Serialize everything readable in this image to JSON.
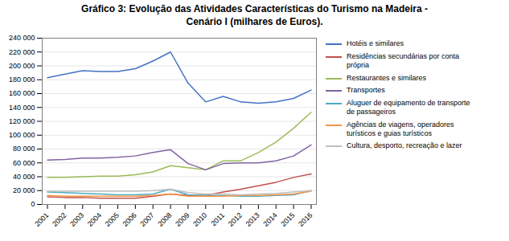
{
  "chart_data": {
    "type": "line",
    "title": "Gráfico 3: Evolução das Atividades Características do Turismo na Madeira -\nCenário I (milhares de Euros).",
    "x": [
      2001,
      2002,
      2003,
      2004,
      2005,
      2006,
      2007,
      2008,
      2009,
      2010,
      2011,
      2012,
      2013,
      2014,
      2015,
      2016
    ],
    "series": [
      {
        "name": "Hotéis e similares",
        "color": "#4472C4",
        "values": [
          183000,
          188000,
          193000,
          192000,
          192000,
          196000,
          207000,
          220000,
          175000,
          148000,
          156000,
          148000,
          146000,
          148000,
          153000,
          165000
        ]
      },
      {
        "name": "Residências secundárias por conta\nprópria",
        "color": "#C0504D",
        "values": [
          11000,
          10000,
          10000,
          9000,
          9000,
          9000,
          12000,
          15000,
          13000,
          13000,
          18000,
          22000,
          27000,
          32000,
          39000,
          44000
        ]
      },
      {
        "name": "Restaurantes e similares",
        "color": "#9BBB59",
        "values": [
          39000,
          39000,
          40000,
          41000,
          41000,
          43000,
          47000,
          56000,
          53000,
          50000,
          63000,
          63000,
          75000,
          90000,
          110000,
          133000
        ]
      },
      {
        "name": "Transportes",
        "color": "#8064A2",
        "values": [
          64000,
          65000,
          67000,
          67000,
          68000,
          70000,
          75000,
          79000,
          59000,
          50000,
          59000,
          60000,
          60000,
          63000,
          70000,
          86000
        ]
      },
      {
        "name": "Aluguer de equipamento de transporte\nde passageiros",
        "color": "#4BACC6",
        "values": [
          18000,
          17000,
          16000,
          15000,
          14000,
          14000,
          15000,
          22000,
          14000,
          13000,
          13000,
          12000,
          12000,
          13000,
          14000,
          20000
        ]
      },
      {
        "name": "Agências de viagens, operadores\nturísticos e guias turísticos",
        "color": "#F79646",
        "values": [
          13000,
          12000,
          12000,
          12000,
          12000,
          12000,
          13000,
          15000,
          12000,
          12000,
          12000,
          13000,
          13000,
          14000,
          15000,
          19000
        ]
      },
      {
        "name": "Cultura, desporto, recreação e lazer",
        "color": "#BFBFBF",
        "values": [
          19000,
          19000,
          19000,
          19000,
          19000,
          19000,
          20000,
          22000,
          17000,
          15000,
          15000,
          14000,
          15000,
          16000,
          18000,
          20000
        ]
      }
    ],
    "xlim": [
      2000.7,
      2016.3
    ],
    "xticks": [
      2001,
      2002,
      2003,
      2004,
      2005,
      2006,
      2007,
      2008,
      2009,
      2010,
      2011,
      2012,
      2013,
      2014,
      2015,
      2016
    ],
    "ylim": [
      0,
      240000
    ],
    "yticks": [
      0,
      {
        "value": 20000,
        "label": "20 000"
      },
      {
        "value": 40000,
        "label": "40 000"
      },
      {
        "value": 60000,
        "label": "60 000"
      },
      {
        "value": 80000,
        "label": "80 000"
      },
      {
        "value": 100000,
        "label": "100 000"
      },
      {
        "value": 120000,
        "label": "120 000"
      },
      {
        "value": 140000,
        "label": "140 000"
      },
      {
        "value": 160000,
        "label": "160 000"
      },
      {
        "value": 180000,
        "label": "180 000"
      },
      {
        "value": 200000,
        "label": "200 000"
      },
      {
        "value": 220000,
        "label": "220 000"
      },
      {
        "value": 240000,
        "label": "240 000"
      }
    ],
    "grid": "y",
    "legend": "right"
  }
}
